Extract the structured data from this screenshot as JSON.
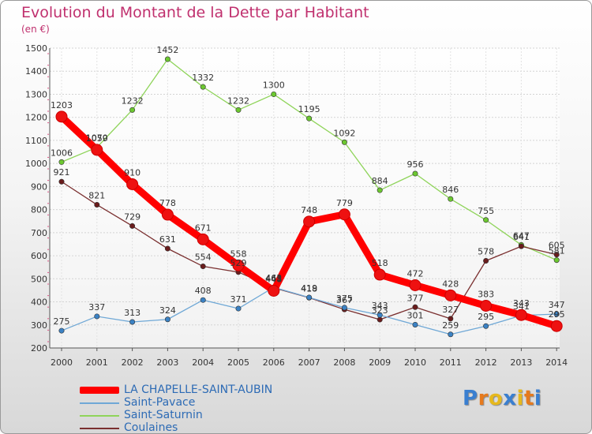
{
  "title": "Evolution du Montant de la Dette par Habitant",
  "subtitle": "(en €)",
  "logo": {
    "text": "Proxiti",
    "colors": [
      "#3a7fd0",
      "#e67a1d",
      "#e6b81d",
      "#3a7fd0",
      "#e6b81d",
      "#e67a1d",
      "#3a7fd0"
    ]
  },
  "chart_data": {
    "type": "line",
    "x": [
      2000,
      2001,
      2002,
      2003,
      2004,
      2005,
      2006,
      2007,
      2008,
      2009,
      2010,
      2011,
      2012,
      2013,
      2014
    ],
    "ylim": [
      200,
      1500
    ],
    "yticks": [
      200,
      300,
      400,
      500,
      600,
      700,
      800,
      900,
      1000,
      1100,
      1200,
      1300,
      1400,
      1500
    ],
    "grid": true,
    "legend_position": "bottom-left",
    "series": [
      {
        "name": "LA CHAPELLE-SAINT-AUBIN",
        "color": "#ff0000",
        "marker": "#ee1111",
        "thick": true,
        "values": [
          1203,
          1059,
          910,
          778,
          671,
          558,
          448,
          748,
          779,
          518,
          472,
          428,
          383,
          343,
          295
        ]
      },
      {
        "name": "Saint-Pavace",
        "color": "#6fa8d6",
        "marker": "#3b82c4",
        "thick": false,
        "values": [
          275,
          337,
          313,
          324,
          408,
          371,
          463,
          419,
          375,
          343,
          301,
          259,
          295,
          341,
          347
        ]
      },
      {
        "name": "Saint-Saturnin",
        "color": "#8fd45a",
        "marker": "#6cc830",
        "thick": false,
        "values": [
          1006,
          1070,
          1232,
          1452,
          1332,
          1232,
          1300,
          1195,
          1092,
          884,
          956,
          846,
          755,
          647,
          581
        ]
      },
      {
        "name": "Coulaines",
        "color": "#7a2f2f",
        "marker": "#6a1c1c",
        "thick": false,
        "values": [
          921,
          821,
          729,
          631,
          554,
          529,
          461,
          418,
          367,
          323,
          377,
          327,
          578,
          641,
          605
        ]
      }
    ]
  }
}
